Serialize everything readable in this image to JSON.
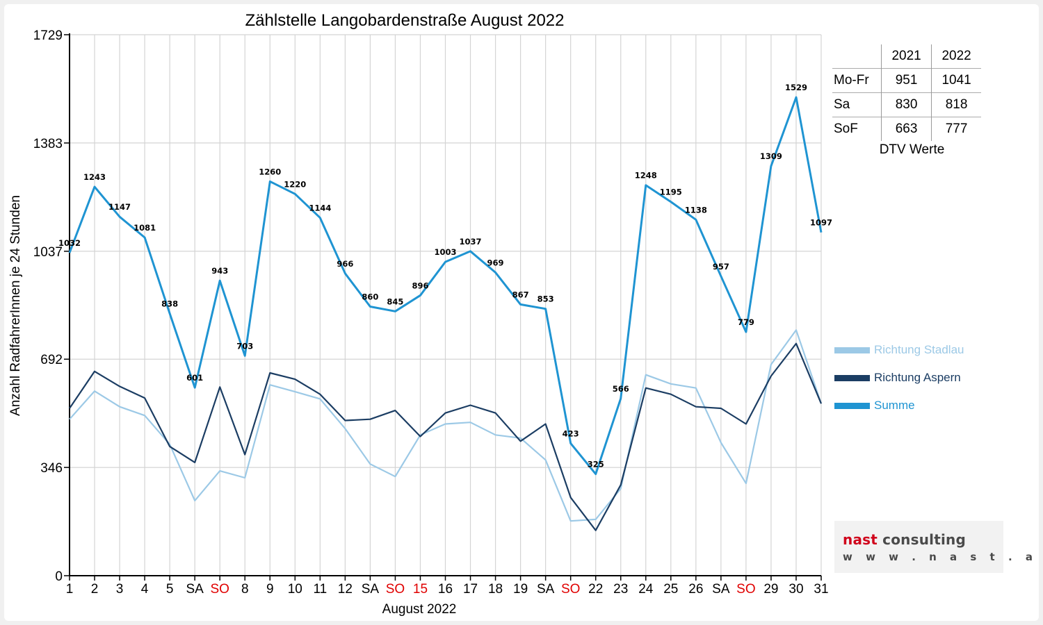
{
  "chart_data": {
    "type": "line",
    "title": "Zählstelle Langobardenstraße August 2022",
    "xlabel": "August 2022",
    "ylabel": "Anzahl RadfahrerInnen je 24 Stunden",
    "ylim": [
      0,
      1729
    ],
    "yticks": [
      0,
      346,
      692,
      1037,
      1383,
      1729
    ],
    "grid": true,
    "categories": [
      "1",
      "2",
      "3",
      "4",
      "5",
      "SA",
      "SO",
      "8",
      "9",
      "10",
      "11",
      "12",
      "SA",
      "SO",
      "15",
      "16",
      "17",
      "18",
      "19",
      "SA",
      "SO",
      "22",
      "23",
      "24",
      "25",
      "26",
      "SA",
      "SO",
      "29",
      "30",
      "31"
    ],
    "highlight_categories": [
      6,
      13,
      14,
      20,
      27
    ],
    "highlight_color": "#e00000",
    "series": [
      {
        "name": "Richtung Stadlau",
        "color": "#9cc9e6",
        "values": [
          500,
          590,
          540,
          512,
          420,
          240,
          335,
          313,
          610,
          588,
          565,
          470,
          357,
          317,
          450,
          485,
          490,
          450,
          440,
          370,
          175,
          180,
          278,
          642,
          613,
          600,
          425,
          295,
          675,
          785,
          550
        ]
      },
      {
        "name": "Richtung Aspern",
        "color": "#1b3d63",
        "values": [
          535,
          653,
          605,
          568,
          413,
          362,
          603,
          387,
          648,
          628,
          580,
          496,
          500,
          528,
          445,
          520,
          545,
          520,
          430,
          485,
          250,
          145,
          290,
          600,
          580,
          540,
          535,
          485,
          638,
          742,
          550
        ]
      },
      {
        "name": "Summe",
        "color": "#1f94d2",
        "values": [
          1032,
          1243,
          1147,
          1081,
          838,
          601,
          943,
          703,
          1260,
          1220,
          1144,
          966,
          860,
          845,
          896,
          1003,
          1037,
          969,
          867,
          853,
          423,
          325,
          566,
          1248,
          1195,
          1138,
          957,
          779,
          1309,
          1529,
          1097
        ]
      }
    ],
    "data_labels": [
      "1032",
      "1243",
      "1147",
      "1081",
      "838",
      "601",
      "943",
      "703",
      "1260",
      "1220",
      "1144",
      "966",
      "860",
      "845",
      "896",
      "1003",
      "1037",
      "969",
      "867",
      "853",
      "423",
      "325",
      "566",
      "1248",
      "1195",
      "1138",
      "957",
      "779",
      "1309",
      "1529",
      "1097"
    ],
    "legend_position": "right"
  },
  "dtv": {
    "headers": [
      "",
      "2021",
      "2022"
    ],
    "rows": [
      {
        "label": "Mo-Fr",
        "y2021": "951",
        "y2022": "1041"
      },
      {
        "label": "Sa",
        "y2021": "830",
        "y2022": "818"
      },
      {
        "label": "SoF",
        "y2021": "663",
        "y2022": "777"
      }
    ],
    "caption": "DTV Werte"
  },
  "logo": {
    "word1": "nast",
    "word2": " consulting",
    "url": "w w w . n a s t . a t"
  }
}
